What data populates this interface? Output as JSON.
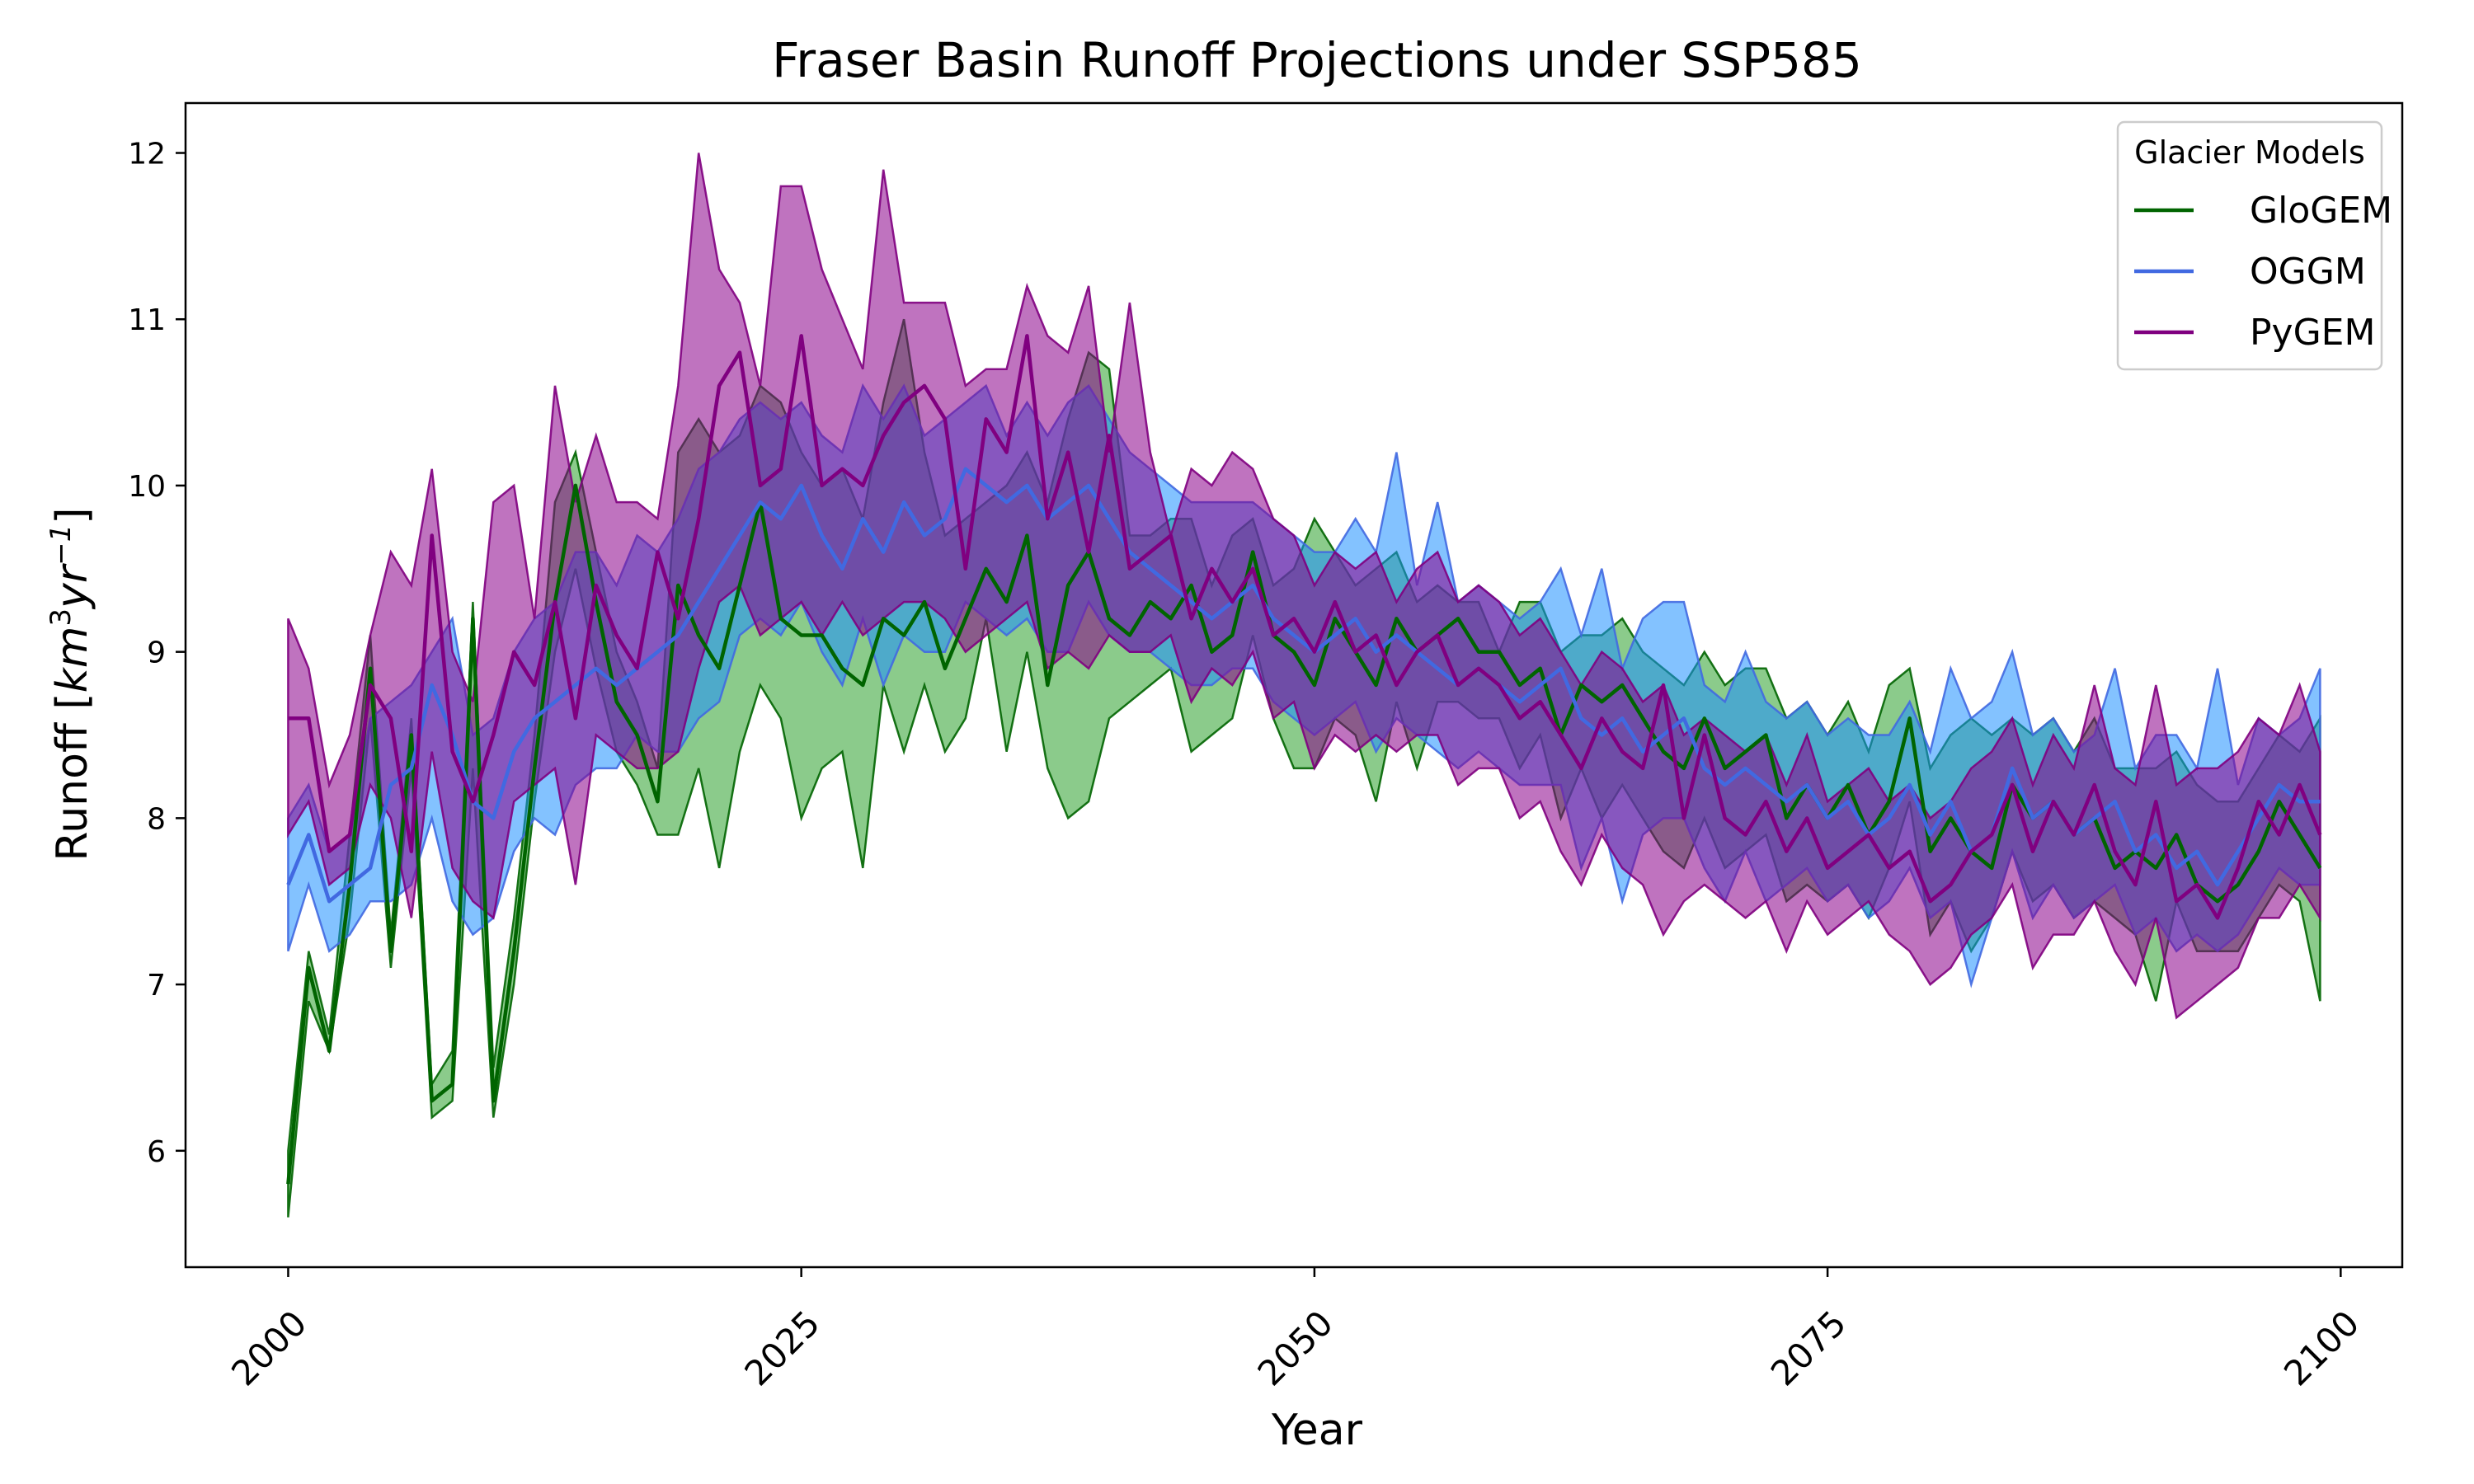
{
  "chart_data": {
    "type": "line",
    "title": "Fraser Basin Runoff Projections under SSP585",
    "xlabel": "Year",
    "ylabel": "Runoff [km³yr⁻¹]",
    "ylabel_main": "Runoff [",
    "ylabel_unit": "km",
    "ylabel_exp1": "3",
    "ylabel_unit2": "yr",
    "ylabel_exp2": "−1",
    "ylabel_close": "]",
    "xlim": [
      1995,
      2103
    ],
    "ylim": [
      5.3,
      12.3
    ],
    "xticks": [
      2000,
      2025,
      2050,
      2075,
      2100
    ],
    "yticks": [
      6,
      7,
      8,
      9,
      10,
      11,
      12
    ],
    "legend": {
      "title": "Glacier Models",
      "position": "top-right"
    },
    "grid": false,
    "series": [
      {
        "name": "GloGEM",
        "color": "#006400",
        "fill": "#2ca02c",
        "mean": [
          5.8,
          7.1,
          6.6,
          7.6,
          8.9,
          7.2,
          8.5,
          6.3,
          6.4,
          9.2,
          6.3,
          7.2,
          8.3,
          9.3,
          10.0,
          9.3,
          8.7,
          8.5,
          8.1,
          9.4,
          9.1,
          8.9,
          9.4,
          9.9,
          9.2,
          9.1,
          9.1,
          8.9,
          8.8,
          9.2,
          9.1,
          9.3,
          8.9,
          9.2,
          9.5,
          9.3,
          9.7,
          8.8,
          9.4,
          9.6,
          9.2,
          9.1,
          9.3,
          9.2,
          9.4,
          9.0,
          9.1,
          9.6,
          9.1,
          9.0,
          8.8,
          9.2,
          9.0,
          8.8,
          9.2,
          9.0,
          9.1,
          9.2,
          9.0,
          9.0,
          8.8,
          8.9,
          8.5,
          8.8,
          8.7,
          8.8,
          8.6,
          8.4,
          8.3,
          8.6,
          8.3,
          8.4,
          8.5,
          8.0,
          8.2,
          8.0,
          8.2,
          7.9,
          8.1,
          8.6,
          7.8,
          8.0,
          7.8,
          7.7,
          8.2,
          8.0,
          8.1,
          7.9,
          8.0,
          7.7,
          7.8,
          7.7,
          7.9,
          7.6,
          7.5,
          7.6,
          7.8,
          8.1,
          7.9,
          7.7
        ],
        "lower": [
          5.6,
          6.9,
          6.6,
          7.4,
          8.6,
          7.1,
          8.3,
          6.2,
          6.3,
          8.3,
          6.2,
          7.0,
          8.1,
          9.0,
          9.5,
          8.9,
          8.4,
          8.2,
          7.9,
          7.9,
          8.3,
          7.7,
          8.4,
          8.8,
          8.6,
          8.0,
          8.3,
          8.4,
          7.7,
          8.8,
          8.4,
          8.8,
          8.4,
          8.6,
          9.2,
          8.4,
          9.0,
          8.3,
          8.0,
          8.1,
          8.6,
          8.7,
          8.8,
          8.9,
          8.4,
          8.5,
          8.6,
          9.1,
          8.6,
          8.3,
          8.3,
          8.6,
          8.5,
          8.1,
          8.7,
          8.3,
          8.7,
          8.7,
          8.6,
          8.6,
          8.3,
          8.5,
          8.0,
          8.3,
          8.0,
          8.2,
          8.0,
          7.8,
          7.7,
          8.0,
          7.7,
          7.8,
          7.9,
          7.5,
          7.6,
          7.5,
          7.6,
          7.4,
          7.7,
          8.1,
          7.3,
          7.5,
          7.2,
          7.4,
          7.8,
          7.5,
          7.6,
          7.4,
          7.5,
          7.4,
          7.3,
          6.9,
          7.5,
          7.2,
          7.2,
          7.2,
          7.4,
          7.6,
          7.5,
          6.9
        ],
        "upper": [
          6.0,
          7.2,
          6.7,
          7.9,
          9.1,
          7.3,
          8.6,
          6.4,
          6.6,
          9.3,
          6.5,
          7.4,
          8.5,
          9.9,
          10.2,
          9.6,
          9.0,
          8.7,
          8.3,
          10.2,
          10.4,
          10.2,
          10.3,
          10.6,
          10.5,
          10.2,
          10.0,
          10.1,
          9.8,
          10.5,
          11.0,
          10.2,
          9.7,
          9.8,
          9.9,
          10.0,
          10.2,
          9.9,
          10.4,
          10.8,
          10.7,
          9.7,
          9.7,
          9.8,
          9.8,
          9.4,
          9.7,
          9.8,
          9.4,
          9.5,
          9.8,
          9.6,
          9.4,
          9.5,
          9.6,
          9.3,
          9.4,
          9.3,
          9.3,
          9.0,
          9.3,
          9.3,
          9.0,
          9.1,
          9.1,
          9.2,
          9.0,
          8.9,
          8.8,
          9.0,
          8.8,
          8.9,
          8.9,
          8.6,
          8.7,
          8.5,
          8.7,
          8.4,
          8.8,
          8.9,
          8.3,
          8.5,
          8.6,
          8.5,
          8.6,
          8.5,
          8.6,
          8.4,
          8.6,
          8.3,
          8.3,
          8.3,
          8.4,
          8.2,
          8.1,
          8.1,
          8.3,
          8.5,
          8.4,
          8.6
        ]
      },
      {
        "name": "OGGM",
        "color": "#4169e1",
        "fill": "#1e90ff",
        "mean": [
          7.6,
          7.9,
          7.5,
          7.6,
          7.7,
          8.2,
          8.3,
          8.8,
          8.5,
          8.1,
          8.0,
          8.4,
          8.6,
          8.7,
          8.8,
          8.9,
          8.8,
          8.9,
          9.0,
          9.1,
          9.3,
          9.5,
          9.7,
          9.9,
          9.8,
          10.0,
          9.7,
          9.5,
          9.8,
          9.6,
          9.9,
          9.7,
          9.8,
          10.1,
          10.0,
          9.9,
          10.0,
          9.8,
          9.9,
          10.0,
          9.8,
          9.6,
          9.5,
          9.4,
          9.3,
          9.2,
          9.3,
          9.4,
          9.2,
          9.1,
          9.0,
          9.1,
          9.2,
          9.0,
          9.1,
          9.0,
          8.9,
          8.8,
          8.9,
          8.8,
          8.7,
          8.8,
          8.9,
          8.6,
          8.5,
          8.6,
          8.4,
          8.5,
          8.6,
          8.3,
          8.2,
          8.3,
          8.2,
          8.1,
          8.2,
          8.0,
          8.1,
          7.9,
          8.0,
          8.2,
          7.9,
          8.1,
          7.8,
          7.9,
          8.3,
          8.0,
          8.1,
          7.9,
          8.0,
          8.1,
          7.8,
          7.9,
          7.7,
          7.8,
          7.6,
          7.8,
          8.0,
          8.2,
          8.1,
          8.1
        ],
        "lower": [
          7.2,
          7.6,
          7.2,
          7.3,
          7.5,
          7.5,
          7.6,
          8.0,
          7.5,
          7.3,
          7.4,
          7.8,
          8.0,
          7.9,
          8.2,
          8.3,
          8.3,
          8.5,
          8.4,
          8.4,
          8.6,
          8.7,
          9.1,
          9.2,
          9.1,
          9.3,
          9.0,
          8.8,
          9.2,
          8.8,
          9.1,
          9.0,
          9.0,
          9.3,
          9.2,
          9.1,
          9.2,
          9.0,
          9.0,
          9.3,
          9.1,
          9.0,
          9.0,
          8.9,
          8.8,
          8.8,
          8.9,
          8.9,
          8.7,
          8.6,
          8.5,
          8.6,
          8.7,
          8.4,
          8.6,
          8.5,
          8.4,
          8.3,
          8.4,
          8.3,
          8.2,
          8.2,
          8.2,
          7.7,
          8.0,
          7.5,
          7.9,
          8.0,
          8.0,
          7.7,
          7.5,
          7.8,
          7.5,
          7.6,
          7.7,
          7.5,
          7.6,
          7.4,
          7.5,
          7.7,
          7.4,
          7.5,
          7.0,
          7.4,
          7.8,
          7.4,
          7.6,
          7.4,
          7.5,
          7.6,
          7.3,
          7.4,
          7.2,
          7.3,
          7.2,
          7.3,
          7.5,
          7.7,
          7.6,
          7.6
        ],
        "upper": [
          8.0,
          8.2,
          7.8,
          7.9,
          8.6,
          8.7,
          8.8,
          9.0,
          9.2,
          8.5,
          8.6,
          9.0,
          9.2,
          9.3,
          9.6,
          9.6,
          9.4,
          9.7,
          9.6,
          9.8,
          10.1,
          10.2,
          10.4,
          10.5,
          10.4,
          10.5,
          10.3,
          10.2,
          10.6,
          10.4,
          10.6,
          10.3,
          10.4,
          10.5,
          10.6,
          10.3,
          10.5,
          10.3,
          10.5,
          10.6,
          10.4,
          10.2,
          10.1,
          10.0,
          9.9,
          9.9,
          9.9,
          9.9,
          9.8,
          9.7,
          9.6,
          9.6,
          9.8,
          9.6,
          10.2,
          9.4,
          9.9,
          9.3,
          9.4,
          9.3,
          9.2,
          9.3,
          9.5,
          9.1,
          9.5,
          8.9,
          9.2,
          9.3,
          9.3,
          8.8,
          8.7,
          9.0,
          8.7,
          8.6,
          8.7,
          8.5,
          8.6,
          8.5,
          8.5,
          8.7,
          8.4,
          8.9,
          8.6,
          8.7,
          9.0,
          8.5,
          8.6,
          8.4,
          8.5,
          8.9,
          8.3,
          8.5,
          8.5,
          8.3,
          8.9,
          8.2,
          8.6,
          8.5,
          8.6,
          8.9
        ]
      },
      {
        "name": "PyGEM",
        "color": "#800080",
        "fill": "#8b008b",
        "mean": [
          8.6,
          8.6,
          7.8,
          7.9,
          8.8,
          8.6,
          7.8,
          9.7,
          8.4,
          8.1,
          8.5,
          9.0,
          8.8,
          9.3,
          8.6,
          9.4,
          9.1,
          8.9,
          9.6,
          9.2,
          9.8,
          10.6,
          10.8,
          10.0,
          10.1,
          10.9,
          10.0,
          10.1,
          10.0,
          10.3,
          10.5,
          10.6,
          10.4,
          9.5,
          10.4,
          10.2,
          10.9,
          9.8,
          10.2,
          9.6,
          10.3,
          9.5,
          9.6,
          9.7,
          9.2,
          9.5,
          9.3,
          9.5,
          9.1,
          9.2,
          9.0,
          9.3,
          9.0,
          9.1,
          8.8,
          9.0,
          9.1,
          8.8,
          8.9,
          8.8,
          8.6,
          8.7,
          8.5,
          8.3,
          8.6,
          8.4,
          8.3,
          8.8,
          8.0,
          8.5,
          8.0,
          7.9,
          8.1,
          7.8,
          8.0,
          7.7,
          7.8,
          7.9,
          7.7,
          7.8,
          7.5,
          7.6,
          7.8,
          7.9,
          8.2,
          7.8,
          8.1,
          7.9,
          8.2,
          7.8,
          7.6,
          8.1,
          7.5,
          7.6,
          7.4,
          7.7,
          8.1,
          7.9,
          8.2,
          7.9
        ],
        "lower": [
          7.9,
          8.1,
          7.6,
          7.7,
          8.2,
          8.0,
          7.4,
          8.4,
          7.7,
          7.5,
          7.4,
          8.1,
          8.2,
          8.3,
          7.6,
          8.5,
          8.4,
          8.3,
          8.3,
          8.4,
          8.9,
          9.3,
          9.4,
          9.1,
          9.2,
          9.3,
          9.1,
          9.3,
          9.1,
          9.2,
          9.3,
          9.3,
          9.2,
          9.0,
          9.1,
          9.2,
          9.3,
          8.9,
          9.0,
          8.9,
          9.1,
          9.0,
          9.0,
          9.1,
          8.7,
          8.9,
          8.8,
          9.0,
          8.6,
          8.7,
          8.3,
          8.5,
          8.4,
          8.5,
          8.4,
          8.5,
          8.5,
          8.2,
          8.3,
          8.3,
          8.0,
          8.1,
          7.8,
          7.6,
          7.9,
          7.7,
          7.6,
          7.3,
          7.5,
          7.6,
          7.5,
          7.4,
          7.5,
          7.2,
          7.5,
          7.3,
          7.4,
          7.5,
          7.3,
          7.2,
          7.0,
          7.1,
          7.3,
          7.4,
          7.6,
          7.1,
          7.3,
          7.3,
          7.5,
          7.2,
          7.0,
          7.4,
          6.8,
          6.9,
          7.0,
          7.1,
          7.4,
          7.4,
          7.6,
          7.4
        ],
        "upper": [
          9.2,
          8.9,
          8.2,
          8.5,
          9.1,
          9.6,
          9.4,
          10.1,
          9.0,
          8.7,
          9.9,
          10.0,
          9.2,
          10.6,
          9.9,
          10.3,
          9.9,
          9.9,
          9.8,
          10.6,
          12.0,
          11.3,
          11.1,
          10.6,
          11.8,
          11.8,
          11.3,
          11.0,
          10.7,
          11.9,
          11.1,
          11.1,
          11.1,
          10.6,
          10.7,
          10.7,
          11.2,
          10.9,
          10.8,
          11.2,
          10.2,
          11.1,
          10.2,
          9.7,
          10.1,
          10.0,
          10.2,
          10.1,
          9.8,
          9.7,
          9.4,
          9.6,
          9.5,
          9.6,
          9.3,
          9.5,
          9.6,
          9.3,
          9.4,
          9.3,
          9.1,
          9.2,
          9.0,
          8.8,
          9.0,
          8.9,
          8.7,
          8.8,
          8.5,
          8.6,
          8.5,
          8.4,
          8.5,
          8.2,
          8.5,
          8.1,
          8.2,
          8.3,
          8.1,
          8.2,
          8.0,
          8.1,
          8.3,
          8.4,
          8.6,
          8.2,
          8.5,
          8.3,
          8.8,
          8.3,
          8.2,
          8.8,
          8.2,
          8.3,
          8.3,
          8.4,
          8.6,
          8.5,
          8.8,
          8.4
        ]
      }
    ]
  }
}
